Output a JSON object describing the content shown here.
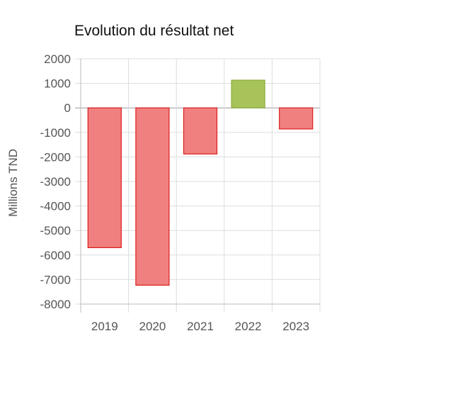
{
  "chart_data": {
    "type": "bar",
    "title": "Evolution du résultat net",
    "xlabel": "",
    "ylabel": "Millions TND",
    "categories": [
      "2019",
      "2020",
      "2021",
      "2022",
      "2023"
    ],
    "values": [
      -5700,
      -7230,
      -1880,
      1130,
      -860
    ],
    "ylim": [
      -8000,
      2000
    ],
    "yticks": [
      2000,
      1000,
      0,
      -1000,
      -2000,
      -3000,
      -4000,
      -5000,
      -6000,
      -7000,
      -8000
    ],
    "ytick_labels": [
      "2000",
      "1000",
      "0",
      "-1000",
      "-2000",
      "-3000",
      "-4000",
      "-5000",
      "-6000",
      "-7000",
      "-8000"
    ],
    "grid": true,
    "legend": "none",
    "colors": {
      "negative_fill": "#f08080",
      "negative_stroke": "#dd1c1c",
      "positive_fill": "#a8c35a",
      "positive_stroke": "#8aaa3a",
      "grid": "#dddddd",
      "axis": "#bbbbbb"
    }
  }
}
